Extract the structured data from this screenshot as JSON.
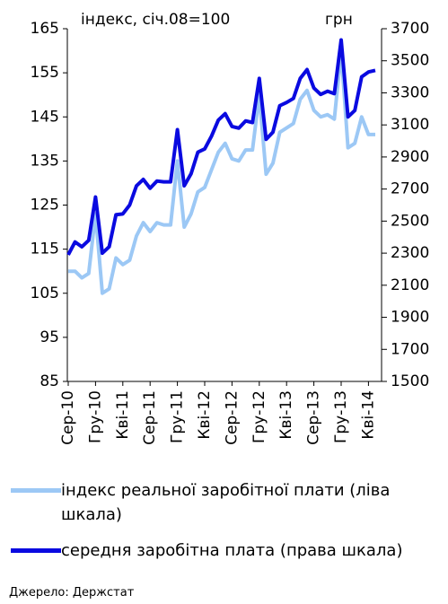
{
  "chart_data": {
    "type": "line",
    "annotations": [
      "індекс, січ.08=100",
      "грн"
    ],
    "categories": [
      "Сер-10",
      null,
      null,
      null,
      "Гру-10",
      null,
      null,
      null,
      "Кві-11",
      null,
      null,
      null,
      "Сер-11",
      null,
      null,
      null,
      "Гру-11",
      null,
      null,
      null,
      "Кві-12",
      null,
      null,
      null,
      "Сер-12",
      null,
      null,
      null,
      "Гру-12",
      null,
      null,
      null,
      "Кві-13",
      null,
      null,
      null,
      "Сер-13",
      null,
      null,
      null,
      "Гру-13",
      null,
      null,
      null,
      "Кві-14",
      null
    ],
    "series": [
      {
        "name": "індекс реальної заробітної плати (ліва шкала)",
        "color": "#9cc8f5",
        "axis": "y",
        "values": [
          110,
          110,
          108.5,
          109.5,
          123,
          105,
          106,
          113,
          111.5,
          112.5,
          118,
          121,
          119,
          121,
          120.5,
          120.5,
          135,
          120,
          123,
          128,
          129,
          133,
          137,
          139,
          135.5,
          135,
          137.5,
          137.5,
          150,
          132,
          134.5,
          141.5,
          142.5,
          143.5,
          149,
          151,
          146.5,
          145,
          145.5,
          144.5,
          160,
          138,
          139,
          145,
          141,
          141
        ]
      },
      {
        "name": "середня заробітна плата (права шкала)",
        "color": "#0a0ae0",
        "axis": "y2",
        "values": [
          2290,
          2370,
          2340,
          2380,
          2650,
          2300,
          2340,
          2540,
          2545,
          2600,
          2720,
          2760,
          2705,
          2750,
          2745,
          2745,
          3070,
          2720,
          2795,
          2930,
          2950,
          3030,
          3130,
          3170,
          3090,
          3080,
          3125,
          3115,
          3390,
          3010,
          3055,
          3220,
          3240,
          3265,
          3390,
          3445,
          3330,
          3290,
          3310,
          3295,
          3630,
          3150,
          3190,
          3400,
          3430,
          3440
        ]
      }
    ],
    "ylim": [
      85,
      165
    ],
    "yticks": [
      85,
      95,
      105,
      115,
      125,
      135,
      145,
      155,
      165
    ],
    "y2lim": [
      1500,
      3700
    ],
    "y2ticks": [
      1500,
      1700,
      1900,
      2100,
      2300,
      2500,
      2700,
      2900,
      3100,
      3300,
      3500,
      3700
    ],
    "source": "Джерело: Держстат"
  }
}
